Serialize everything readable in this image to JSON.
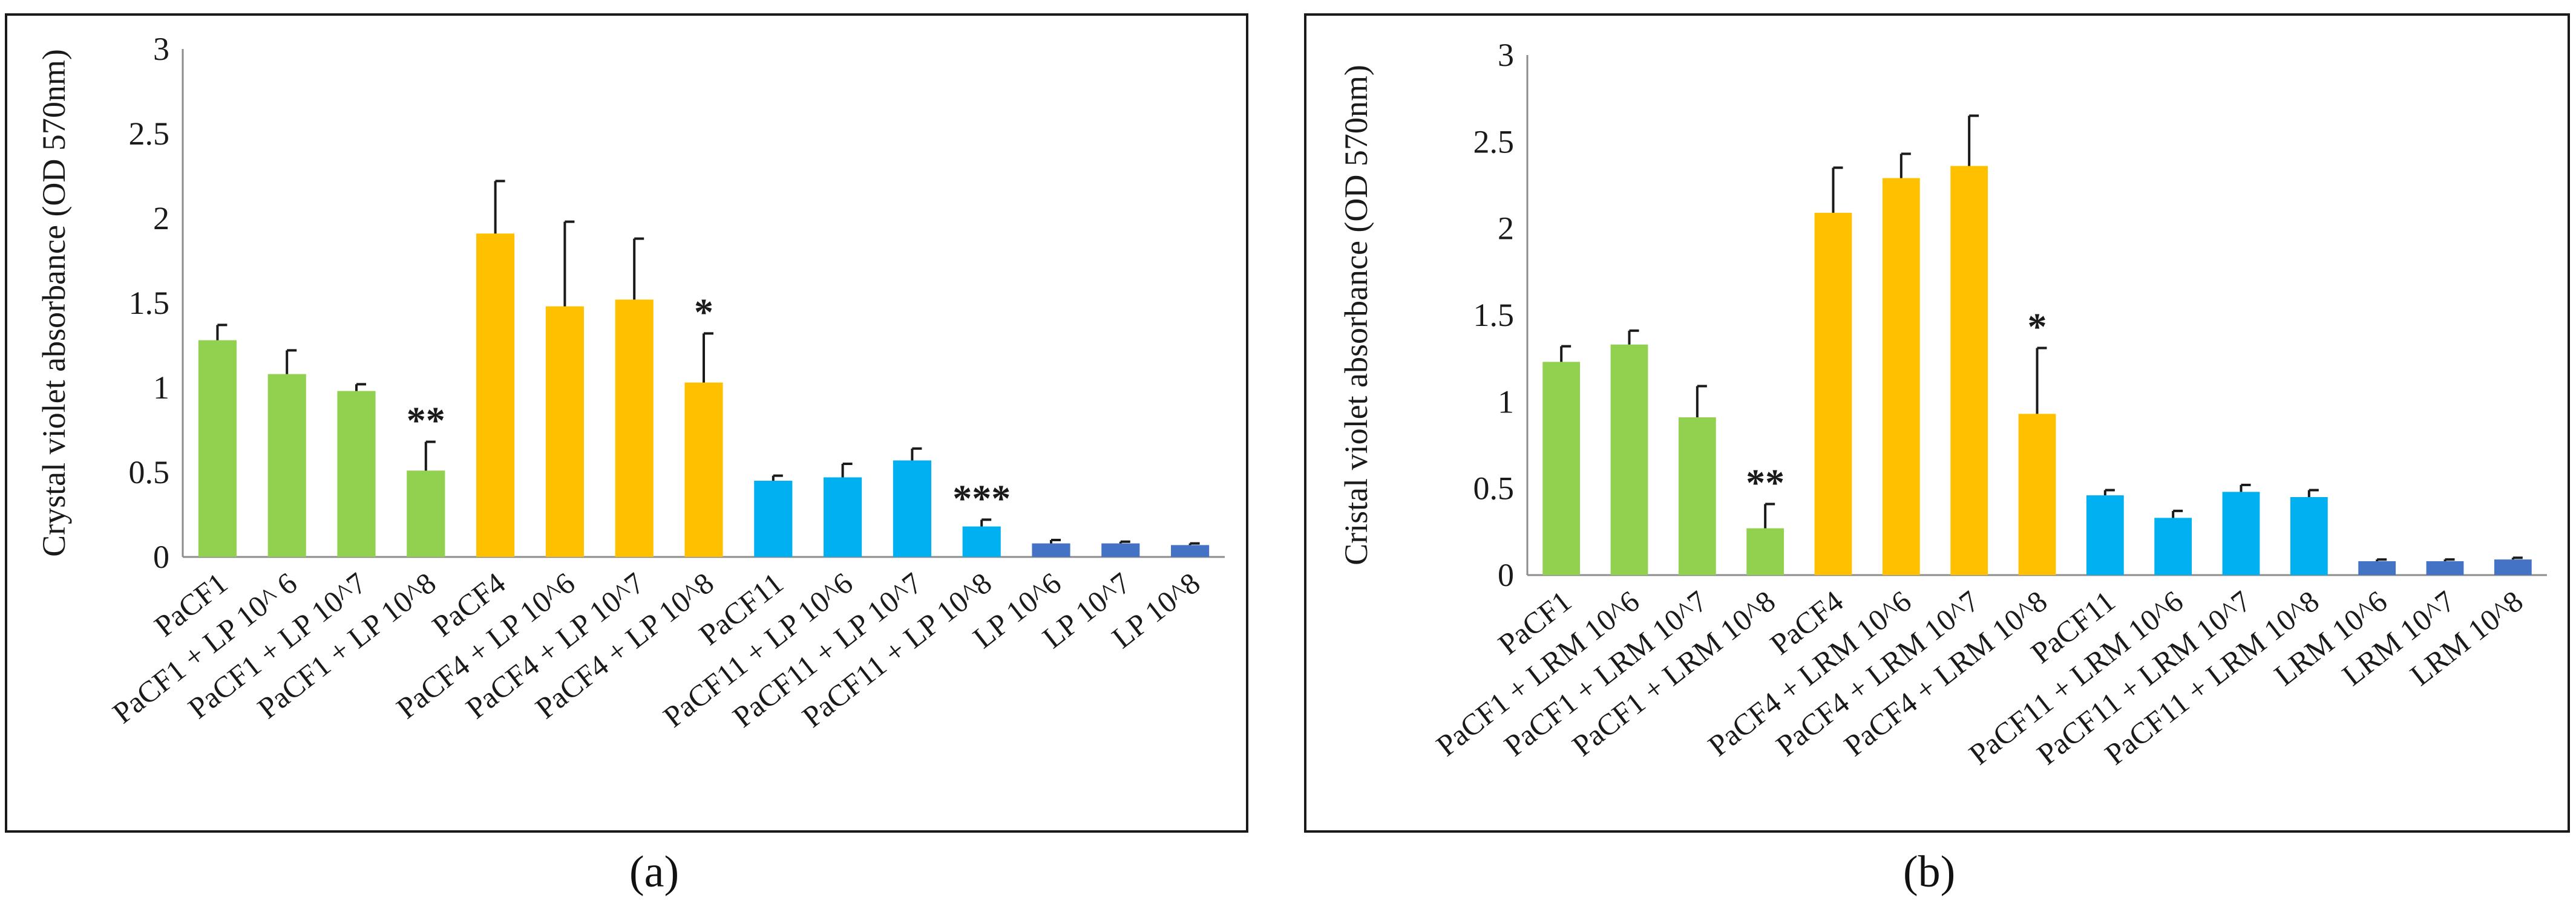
{
  "captions": {
    "a": "(a)",
    "b": "(b)"
  },
  "chart_data": [
    {
      "type": "bar",
      "panel": "a",
      "title": "",
      "xlabel": "",
      "ylabel": "Crystal violet absorbance (OD 570nm)",
      "ylim": [
        0,
        3
      ],
      "yticks": [
        0,
        0.5,
        1,
        1.5,
        2,
        2.5,
        3
      ],
      "ytick_labels": [
        "0",
        "0.5",
        "1",
        "1.5",
        "2",
        "2.5",
        "3"
      ],
      "grid": false,
      "categories": [
        "PaCF1",
        "PaCF1 + LP 10^ 6",
        "PaCF1 + LP 10^7",
        "PaCF1 + LP 10^8",
        "PaCF4",
        "PaCF4 + LP 10^6",
        "PaCF4 + LP 10^7",
        "PaCF4 + LP 10^8",
        "PaCF11",
        "PaCF11 + LP 10^6",
        "PaCF11 + LP 10^7",
        "PaCF11 + LP 10^8",
        "LP 10^6",
        "LP 10^7",
        "LP 10^8"
      ],
      "values": [
        1.28,
        1.08,
        0.98,
        0.51,
        1.91,
        1.48,
        1.52,
        1.03,
        0.45,
        0.47,
        0.57,
        0.18,
        0.08,
        0.08,
        0.07
      ],
      "errors": [
        0.09,
        0.14,
        0.04,
        0.17,
        0.31,
        0.5,
        0.36,
        0.29,
        0.03,
        0.08,
        0.07,
        0.04,
        0.02,
        0.01,
        0.01
      ],
      "colors": [
        "#92d050",
        "#92d050",
        "#92d050",
        "#92d050",
        "#ffc000",
        "#ffc000",
        "#ffc000",
        "#ffc000",
        "#00b0f0",
        "#00b0f0",
        "#00b0f0",
        "#00b0f0",
        "#4472c4",
        "#4472c4",
        "#4472c4"
      ],
      "significance": [
        "",
        "",
        "",
        "**",
        "",
        "",
        "",
        "*",
        "",
        "",
        "",
        "***",
        "",
        "",
        ""
      ]
    },
    {
      "type": "bar",
      "panel": "b",
      "title": "",
      "xlabel": "",
      "ylabel": "Cristal violet absorbance  (OD 570nm)",
      "ylim": [
        0,
        3
      ],
      "yticks": [
        0,
        0.5,
        1,
        1.5,
        2,
        2.5,
        3
      ],
      "ytick_labels": [
        "0",
        "0.5",
        "1",
        "1.5",
        "2",
        "2.5",
        "3"
      ],
      "grid": false,
      "categories": [
        "PaCF1",
        "PaCF1 + LRM 10^6",
        "PaCF1 + LRM 10^7",
        "PaCF1 + LRM 10^8",
        "PaCF4",
        "PaCF4 + LRM 10^6",
        "PaCF4 + LRM 10^7",
        "PaCF4 + LRM 10^8",
        "PaCF11",
        "PaCF11 + LRM 10^6",
        "PaCF11 + LRM 10^7",
        "PaCF11 + LRM 10^8",
        "LRM 10^6",
        "LRM 10^7",
        "LRM 10^8"
      ],
      "values": [
        1.23,
        1.33,
        0.91,
        0.27,
        2.09,
        2.29,
        2.36,
        0.93,
        0.46,
        0.33,
        0.48,
        0.45,
        0.08,
        0.08,
        0.09
      ],
      "errors": [
        0.09,
        0.08,
        0.18,
        0.14,
        0.26,
        0.14,
        0.29,
        0.38,
        0.03,
        0.04,
        0.04,
        0.04,
        0.01,
        0.01,
        0.01
      ],
      "colors": [
        "#92d050",
        "#92d050",
        "#92d050",
        "#92d050",
        "#ffc000",
        "#ffc000",
        "#ffc000",
        "#ffc000",
        "#00b0f0",
        "#00b0f0",
        "#00b0f0",
        "#00b0f0",
        "#4472c4",
        "#4472c4",
        "#4472c4"
      ],
      "significance": [
        "",
        "",
        "",
        "**",
        "",
        "",
        "",
        "*",
        "",
        "",
        "",
        "",
        "",
        "",
        ""
      ]
    }
  ]
}
